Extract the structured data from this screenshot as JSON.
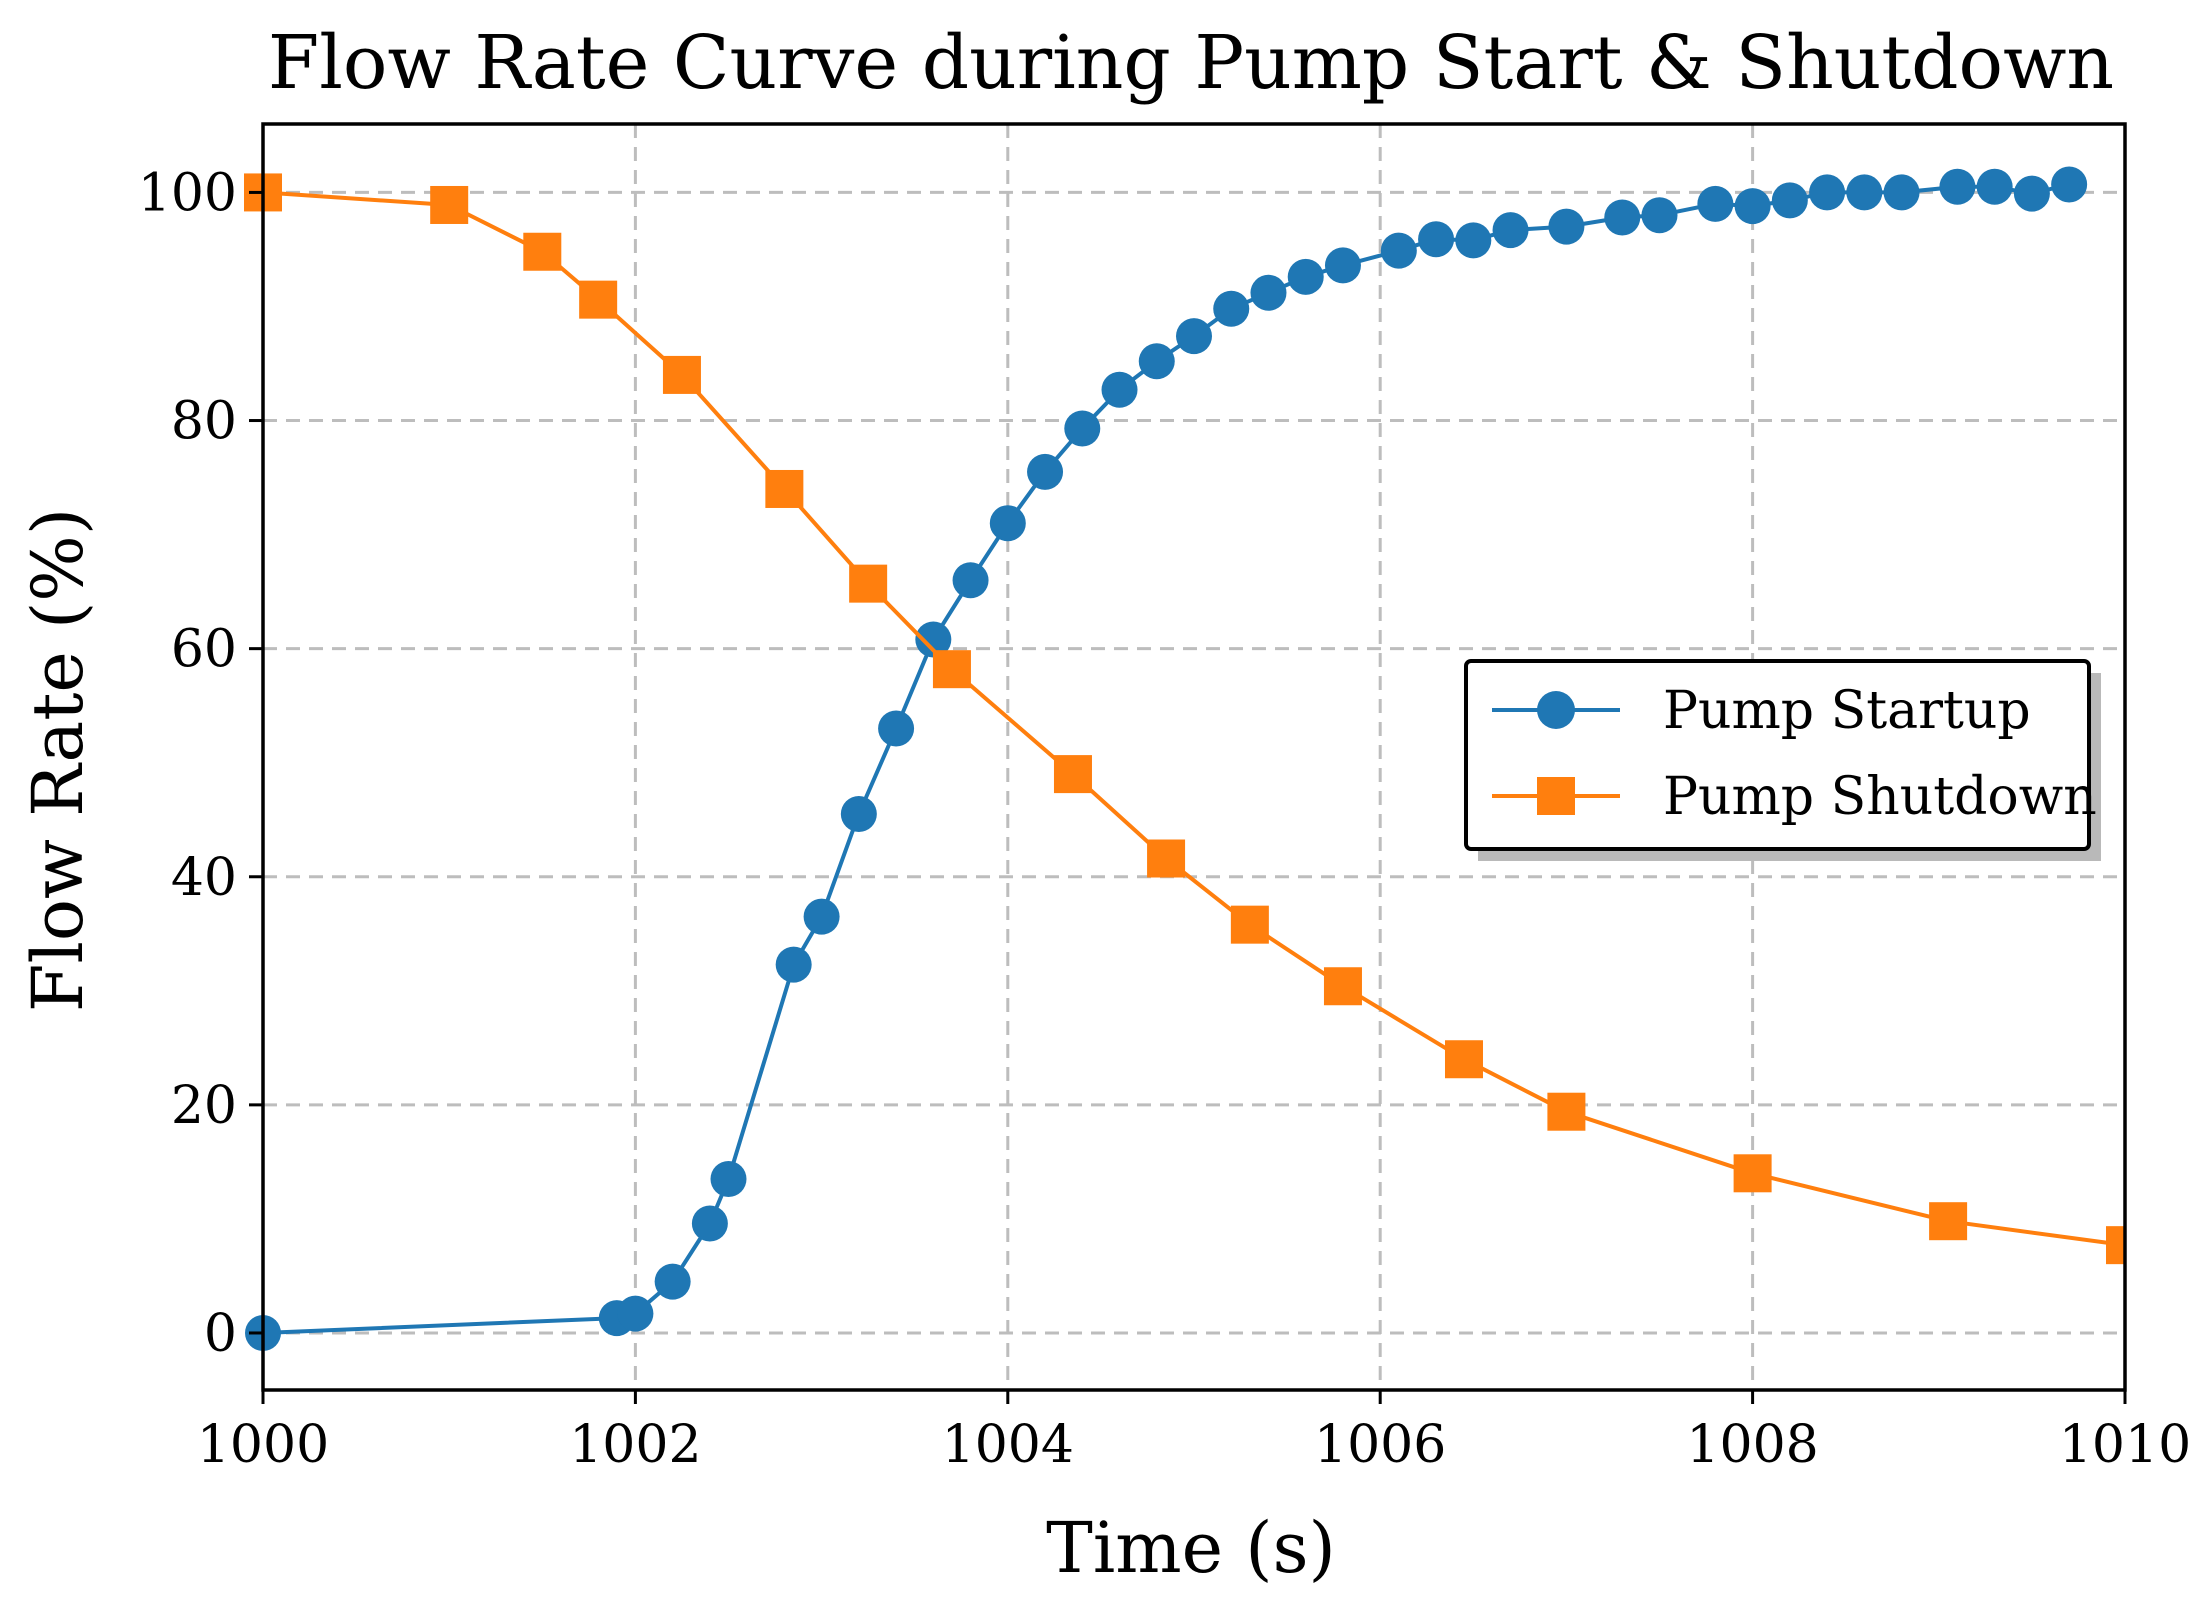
{
  "chart_data": {
    "type": "line",
    "title": "Flow Rate Curve during Pump Start & Shutdown",
    "xlabel": "Time (s)",
    "ylabel": "Flow Rate (%)",
    "xlim": [
      1000,
      1010
    ],
    "ylim": [
      -5,
      106
    ],
    "xticks": [
      1000,
      1002,
      1004,
      1006,
      1008,
      1010
    ],
    "yticks": [
      0,
      20,
      40,
      60,
      80,
      100
    ],
    "grid": true,
    "legend_position": "center-right",
    "series": [
      {
        "name": "Pump Startup",
        "color": "#1f77b4",
        "marker": "circle",
        "x": [
          1000.0,
          1001.9,
          1002.0,
          1002.2,
          1002.4,
          1002.5,
          1002.85,
          1003.0,
          1003.2,
          1003.4,
          1003.6,
          1003.8,
          1004.0,
          1004.2,
          1004.4,
          1004.6,
          1004.8,
          1005.0,
          1005.2,
          1005.4,
          1005.6,
          1005.8,
          1006.1,
          1006.3,
          1006.5,
          1006.7,
          1007.0,
          1007.3,
          1007.5,
          1007.8,
          1008.0,
          1008.2,
          1008.4,
          1008.6,
          1008.8,
          1009.1,
          1009.3,
          1009.5,
          1009.7
        ],
        "y": [
          0.0,
          1.3,
          1.7,
          4.5,
          9.6,
          13.5,
          32.3,
          36.5,
          45.5,
          53.0,
          60.8,
          66.0,
          71.0,
          75.5,
          79.3,
          82.7,
          85.2,
          87.4,
          89.8,
          91.2,
          92.6,
          93.6,
          94.9,
          95.9,
          95.8,
          96.7,
          97.0,
          97.8,
          98.0,
          99.0,
          98.8,
          99.3,
          100.0,
          100.0,
          100.0,
          100.5,
          100.5,
          99.9,
          100.7
        ]
      },
      {
        "name": "Pump Shutdown",
        "color": "#ff7f0e",
        "marker": "square",
        "x": [
          1000.0,
          1001.0,
          1001.5,
          1001.8,
          1002.25,
          1002.8,
          1003.25,
          1003.7,
          1004.35,
          1004.85,
          1005.3,
          1005.8,
          1006.45,
          1007.0,
          1008.0,
          1009.05,
          1010.0
        ],
        "y": [
          100.0,
          98.9,
          94.8,
          90.6,
          84.0,
          74.0,
          65.7,
          58.2,
          49.0,
          41.6,
          35.8,
          30.4,
          24.0,
          19.4,
          14.0,
          9.8,
          7.7
        ]
      }
    ]
  }
}
